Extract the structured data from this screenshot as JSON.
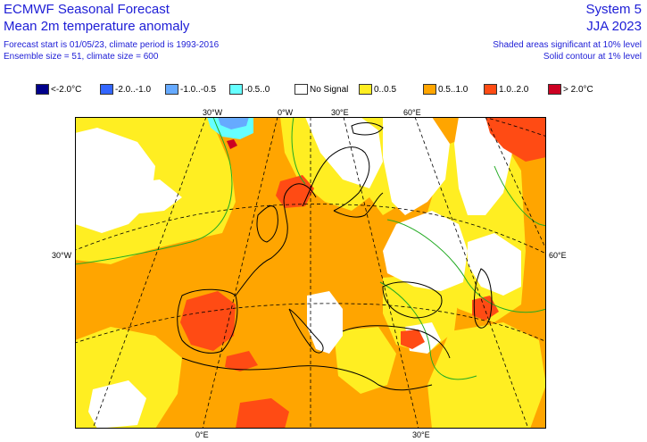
{
  "header": {
    "title": "ECMWF Seasonal Forecast",
    "subtitle": "Mean 2m temperature anomaly",
    "forecast_info": "Forecast start is 01/05/23, climate period is 1993-2016",
    "ensemble_info": "Ensemble size = 51, climate size = 600",
    "system": "System 5",
    "period": "JJA 2023",
    "significance_shaded": "Shaded areas significant at 10% level",
    "significance_contour": "Solid contour at 1% level"
  },
  "legend": [
    {
      "label": "<-2.0°C",
      "color": "#00008b"
    },
    {
      "label": "-2.0..-1.0",
      "color": "#3366ff"
    },
    {
      "label": "-1.0..-0.5",
      "color": "#66aaff"
    },
    {
      "label": "-0.5..0",
      "color": "#66ffff"
    },
    {
      "label": "No Signal",
      "color": "#ffffff"
    },
    {
      "label": "0..0.5",
      "color": "#ffee22"
    },
    {
      "label": "0.5..1.0",
      "color": "#ffa500"
    },
    {
      "label": "1.0..2.0",
      "color": "#ff4b14"
    },
    {
      "label": "> 2.0°C",
      "color": "#cc0022"
    }
  ],
  "map": {
    "projection": "Lambert conformal, Europe",
    "lon_labels_top": [
      "30°W",
      "0°W",
      "30°E",
      "60°E"
    ],
    "lon_labels_bottom": [
      "0°E",
      "30°E"
    ],
    "lat_labels": {
      "left": "30°W",
      "right": "60°E"
    },
    "contour_color": "#22aa22",
    "coastline_color": "#000000",
    "graticule": "dashed"
  }
}
